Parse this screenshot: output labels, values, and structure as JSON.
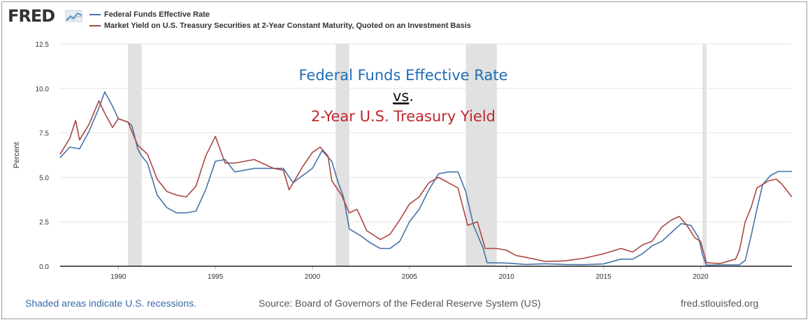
{
  "logo": {
    "text": "FRED"
  },
  "legend": [
    {
      "label": "Federal Funds Effective Rate",
      "color": "#4572a7"
    },
    {
      "label": "Market Yield on U.S. Treasury Securities at 2-Year Constant Maturity, Quoted on an Investment Basis",
      "color": "#aa4643"
    }
  ],
  "annotation": {
    "line1": "Federal Funds Effective Rate",
    "line2": "vs",
    "line2_suffix": ".",
    "line3": "2-Year U.S. Treasury Yield",
    "line1_color": "#1f6db5",
    "line3_color": "#c0272d"
  },
  "footer": {
    "left": "Shaded areas indicate U.S. recessions.",
    "source": "Source: Board of Governors of the Federal Reserve System (US)",
    "site": "fred.stlouisfed.org"
  },
  "chart_data": {
    "type": "line",
    "ylabel": "Percent",
    "xlim": [
      1987,
      2024.7
    ],
    "ylim": [
      0,
      12.5
    ],
    "yticks": [
      "0.0",
      "2.5",
      "5.0",
      "7.5",
      "10.0",
      "12.5"
    ],
    "xticks": [
      "1990",
      "1995",
      "2000",
      "2005",
      "2010",
      "2015",
      "2020"
    ],
    "grid": true,
    "legend_position": "top-left",
    "recessions": [
      [
        1990.5,
        1991.2
      ],
      [
        2001.2,
        2001.9
      ],
      [
        2007.9,
        2009.5
      ],
      [
        2020.1,
        2020.3
      ]
    ],
    "series": [
      {
        "name": "Federal Funds Effective Rate",
        "color": "#4572a7",
        "x": [
          1987.0,
          1987.5,
          1988.0,
          1988.5,
          1989.0,
          1989.3,
          1989.7,
          1990.0,
          1990.5,
          1990.7,
          1991.0,
          1991.2,
          1991.5,
          1992.0,
          1992.5,
          1993.0,
          1993.5,
          1994.0,
          1994.5,
          1995.0,
          1995.5,
          1996.0,
          1997.0,
          1998.0,
          1998.5,
          1999.0,
          1999.5,
          2000.0,
          2000.5,
          2001.0,
          2001.3,
          2001.6,
          2001.9,
          2002.5,
          2003.0,
          2003.5,
          2004.0,
          2004.5,
          2005.0,
          2005.5,
          2006.0,
          2006.5,
          2007.0,
          2007.5,
          2007.9,
          2008.3,
          2008.8,
          2009.0,
          2010.0,
          2011.0,
          2012.0,
          2013.0,
          2014.0,
          2015.0,
          2015.9,
          2016.5,
          2017.0,
          2017.5,
          2018.0,
          2018.5,
          2019.0,
          2019.5,
          2019.9,
          2020.1,
          2020.3,
          2021.0,
          2022.0,
          2022.3,
          2022.6,
          2022.9,
          2023.2,
          2023.6,
          2024.0,
          2024.7
        ],
        "values": [
          6.1,
          6.7,
          6.6,
          7.6,
          8.9,
          9.8,
          9.0,
          8.3,
          8.1,
          7.9,
          6.6,
          6.2,
          5.8,
          4.0,
          3.3,
          3.0,
          3.0,
          3.1,
          4.3,
          5.9,
          6.0,
          5.3,
          5.5,
          5.5,
          5.5,
          4.7,
          5.1,
          5.5,
          6.5,
          5.9,
          4.8,
          3.9,
          2.1,
          1.7,
          1.3,
          1.0,
          1.0,
          1.4,
          2.5,
          3.2,
          4.3,
          5.2,
          5.3,
          5.3,
          4.2,
          2.3,
          1.0,
          0.2,
          0.18,
          0.1,
          0.14,
          0.1,
          0.09,
          0.13,
          0.4,
          0.4,
          0.7,
          1.15,
          1.4,
          1.9,
          2.4,
          2.3,
          1.6,
          0.65,
          0.06,
          0.08,
          0.08,
          0.33,
          1.7,
          3.2,
          4.6,
          5.1,
          5.33,
          5.33
        ]
      },
      {
        "name": "Market Yield on U.S. Treasury Securities at 2-Year Constant Maturity, Quoted on an Investment Basis",
        "color": "#aa4643",
        "x": [
          1987.0,
          1987.5,
          1987.8,
          1988.0,
          1988.5,
          1989.0,
          1989.3,
          1989.7,
          1990.0,
          1990.5,
          1991.0,
          1991.5,
          1992.0,
          1992.5,
          1993.0,
          1993.5,
          1994.0,
          1994.5,
          1995.0,
          1995.5,
          1996.0,
          1997.0,
          1998.0,
          1998.5,
          1998.8,
          1999.5,
          2000.0,
          2000.4,
          2000.8,
          2001.0,
          2001.5,
          2001.9,
          2002.3,
          2002.8,
          2003.5,
          2004.0,
          2004.5,
          2005.0,
          2005.5,
          2006.0,
          2006.5,
          2007.0,
          2007.5,
          2008.0,
          2008.5,
          2008.9,
          2009.5,
          2010.0,
          2010.5,
          2011.0,
          2012.0,
          2013.0,
          2014.0,
          2015.0,
          2015.9,
          2016.5,
          2017.0,
          2017.5,
          2018.0,
          2018.5,
          2018.9,
          2019.3,
          2019.7,
          2020.0,
          2020.3,
          2021.0,
          2021.8,
          2022.0,
          2022.3,
          2022.6,
          2022.9,
          2023.2,
          2023.5,
          2023.9,
          2024.2,
          2024.7
        ],
        "values": [
          6.3,
          7.2,
          8.2,
          7.1,
          8.0,
          9.3,
          8.6,
          7.8,
          8.3,
          8.1,
          6.8,
          6.3,
          4.9,
          4.2,
          4.0,
          3.9,
          4.5,
          6.2,
          7.3,
          5.8,
          5.8,
          6.0,
          5.5,
          5.4,
          4.3,
          5.6,
          6.4,
          6.7,
          6.2,
          4.8,
          4.0,
          3.0,
          3.2,
          2.0,
          1.5,
          1.8,
          2.6,
          3.5,
          3.9,
          4.7,
          5.0,
          4.7,
          4.4,
          2.3,
          2.5,
          1.0,
          1.0,
          0.9,
          0.6,
          0.5,
          0.27,
          0.3,
          0.45,
          0.7,
          1.0,
          0.8,
          1.2,
          1.4,
          2.2,
          2.6,
          2.8,
          2.3,
          1.6,
          1.4,
          0.2,
          0.15,
          0.4,
          0.9,
          2.5,
          3.3,
          4.4,
          4.6,
          4.8,
          4.9,
          4.6,
          3.9
        ]
      }
    ]
  }
}
